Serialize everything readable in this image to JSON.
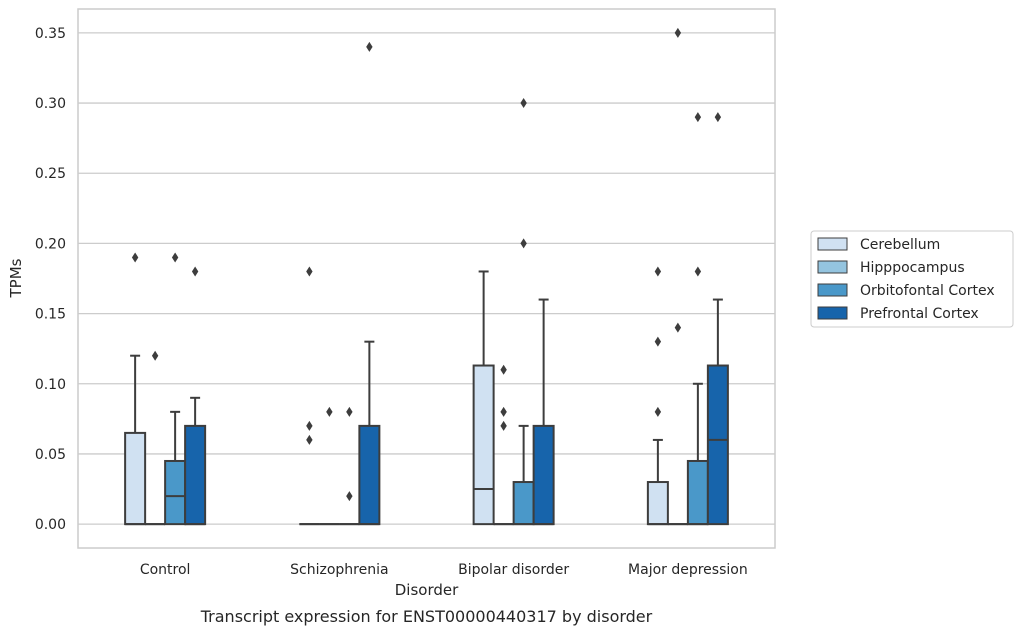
{
  "chart_data": {
    "type": "box",
    "categories": [
      "Control",
      "Schizophrenia",
      "Bipolar disorder",
      "Major depression"
    ],
    "xlabel": "Disorder",
    "ylabel": "TPMs",
    "caption": "Transcript expression for ENST00000440317 by disorder",
    "ylim": [
      -0.017,
      0.367
    ],
    "yticks": [
      0.0,
      0.05,
      0.1,
      0.15,
      0.2,
      0.25,
      0.3,
      0.35
    ],
    "ytick_labels": [
      "0.00",
      "0.05",
      "0.10",
      "0.15",
      "0.20",
      "0.25",
      "0.30",
      "0.35"
    ],
    "grid": "horizontal",
    "legend_position": "right",
    "series": [
      {
        "name": "Cerebellum",
        "color": "#d0e1f2",
        "boxes": [
          {
            "q1": 0.0,
            "median": 0.0,
            "q3": 0.065,
            "whisker_low": 0.0,
            "whisker_high": 0.12,
            "outliers": [
              0.19
            ]
          },
          {
            "q1": 0.0,
            "median": 0.0,
            "q3": 0.0,
            "whisker_low": 0.0,
            "whisker_high": 0.0,
            "outliers": [
              0.06,
              0.07,
              0.18
            ]
          },
          {
            "q1": 0.0,
            "median": 0.025,
            "q3": 0.113,
            "whisker_low": 0.0,
            "whisker_high": 0.18,
            "outliers": []
          },
          {
            "q1": 0.0,
            "median": 0.0,
            "q3": 0.03,
            "whisker_low": 0.0,
            "whisker_high": 0.06,
            "outliers": [
              0.08,
              0.13,
              0.18
            ]
          }
        ]
      },
      {
        "name": "Hipppocampus",
        "color": "#94c4df",
        "boxes": [
          {
            "q1": 0.0,
            "median": 0.0,
            "q3": 0.0,
            "whisker_low": 0.0,
            "whisker_high": 0.0,
            "outliers": [
              0.12
            ]
          },
          {
            "q1": 0.0,
            "median": 0.0,
            "q3": 0.0,
            "whisker_low": 0.0,
            "whisker_high": 0.0,
            "outliers": [
              0.08
            ]
          },
          {
            "q1": 0.0,
            "median": 0.0,
            "q3": 0.0,
            "whisker_low": 0.0,
            "whisker_high": 0.0,
            "outliers": [
              0.07,
              0.08,
              0.11
            ]
          },
          {
            "q1": 0.0,
            "median": 0.0,
            "q3": 0.0,
            "whisker_low": 0.0,
            "whisker_high": 0.0,
            "outliers": [
              0.14,
              0.35
            ]
          }
        ]
      },
      {
        "name": "Orbitofontal Cortex",
        "color": "#4a98c9",
        "boxes": [
          {
            "q1": 0.0,
            "median": 0.02,
            "q3": 0.045,
            "whisker_low": 0.0,
            "whisker_high": 0.08,
            "outliers": [
              0.19
            ]
          },
          {
            "q1": 0.0,
            "median": 0.0,
            "q3": 0.0,
            "whisker_low": 0.0,
            "whisker_high": 0.0,
            "outliers": [
              0.02,
              0.08
            ]
          },
          {
            "q1": 0.0,
            "median": 0.0,
            "q3": 0.03,
            "whisker_low": 0.0,
            "whisker_high": 0.07,
            "outliers": [
              0.2,
              0.3
            ]
          },
          {
            "q1": 0.0,
            "median": 0.0,
            "q3": 0.045,
            "whisker_low": 0.0,
            "whisker_high": 0.1,
            "outliers": [
              0.18,
              0.29
            ]
          }
        ]
      },
      {
        "name": "Prefrontal Cortex",
        "color": "#1764ab",
        "boxes": [
          {
            "q1": 0.0,
            "median": 0.0,
            "q3": 0.07,
            "whisker_low": 0.0,
            "whisker_high": 0.09,
            "outliers": [
              0.18
            ]
          },
          {
            "q1": 0.0,
            "median": 0.0,
            "q3": 0.07,
            "whisker_low": 0.0,
            "whisker_high": 0.13,
            "outliers": [
              0.34
            ]
          },
          {
            "q1": 0.0,
            "median": 0.0,
            "q3": 0.07,
            "whisker_low": 0.0,
            "whisker_high": 0.16,
            "outliers": []
          },
          {
            "q1": 0.0,
            "median": 0.06,
            "q3": 0.113,
            "whisker_low": 0.0,
            "whisker_high": 0.16,
            "outliers": [
              0.29
            ]
          }
        ]
      }
    ]
  }
}
